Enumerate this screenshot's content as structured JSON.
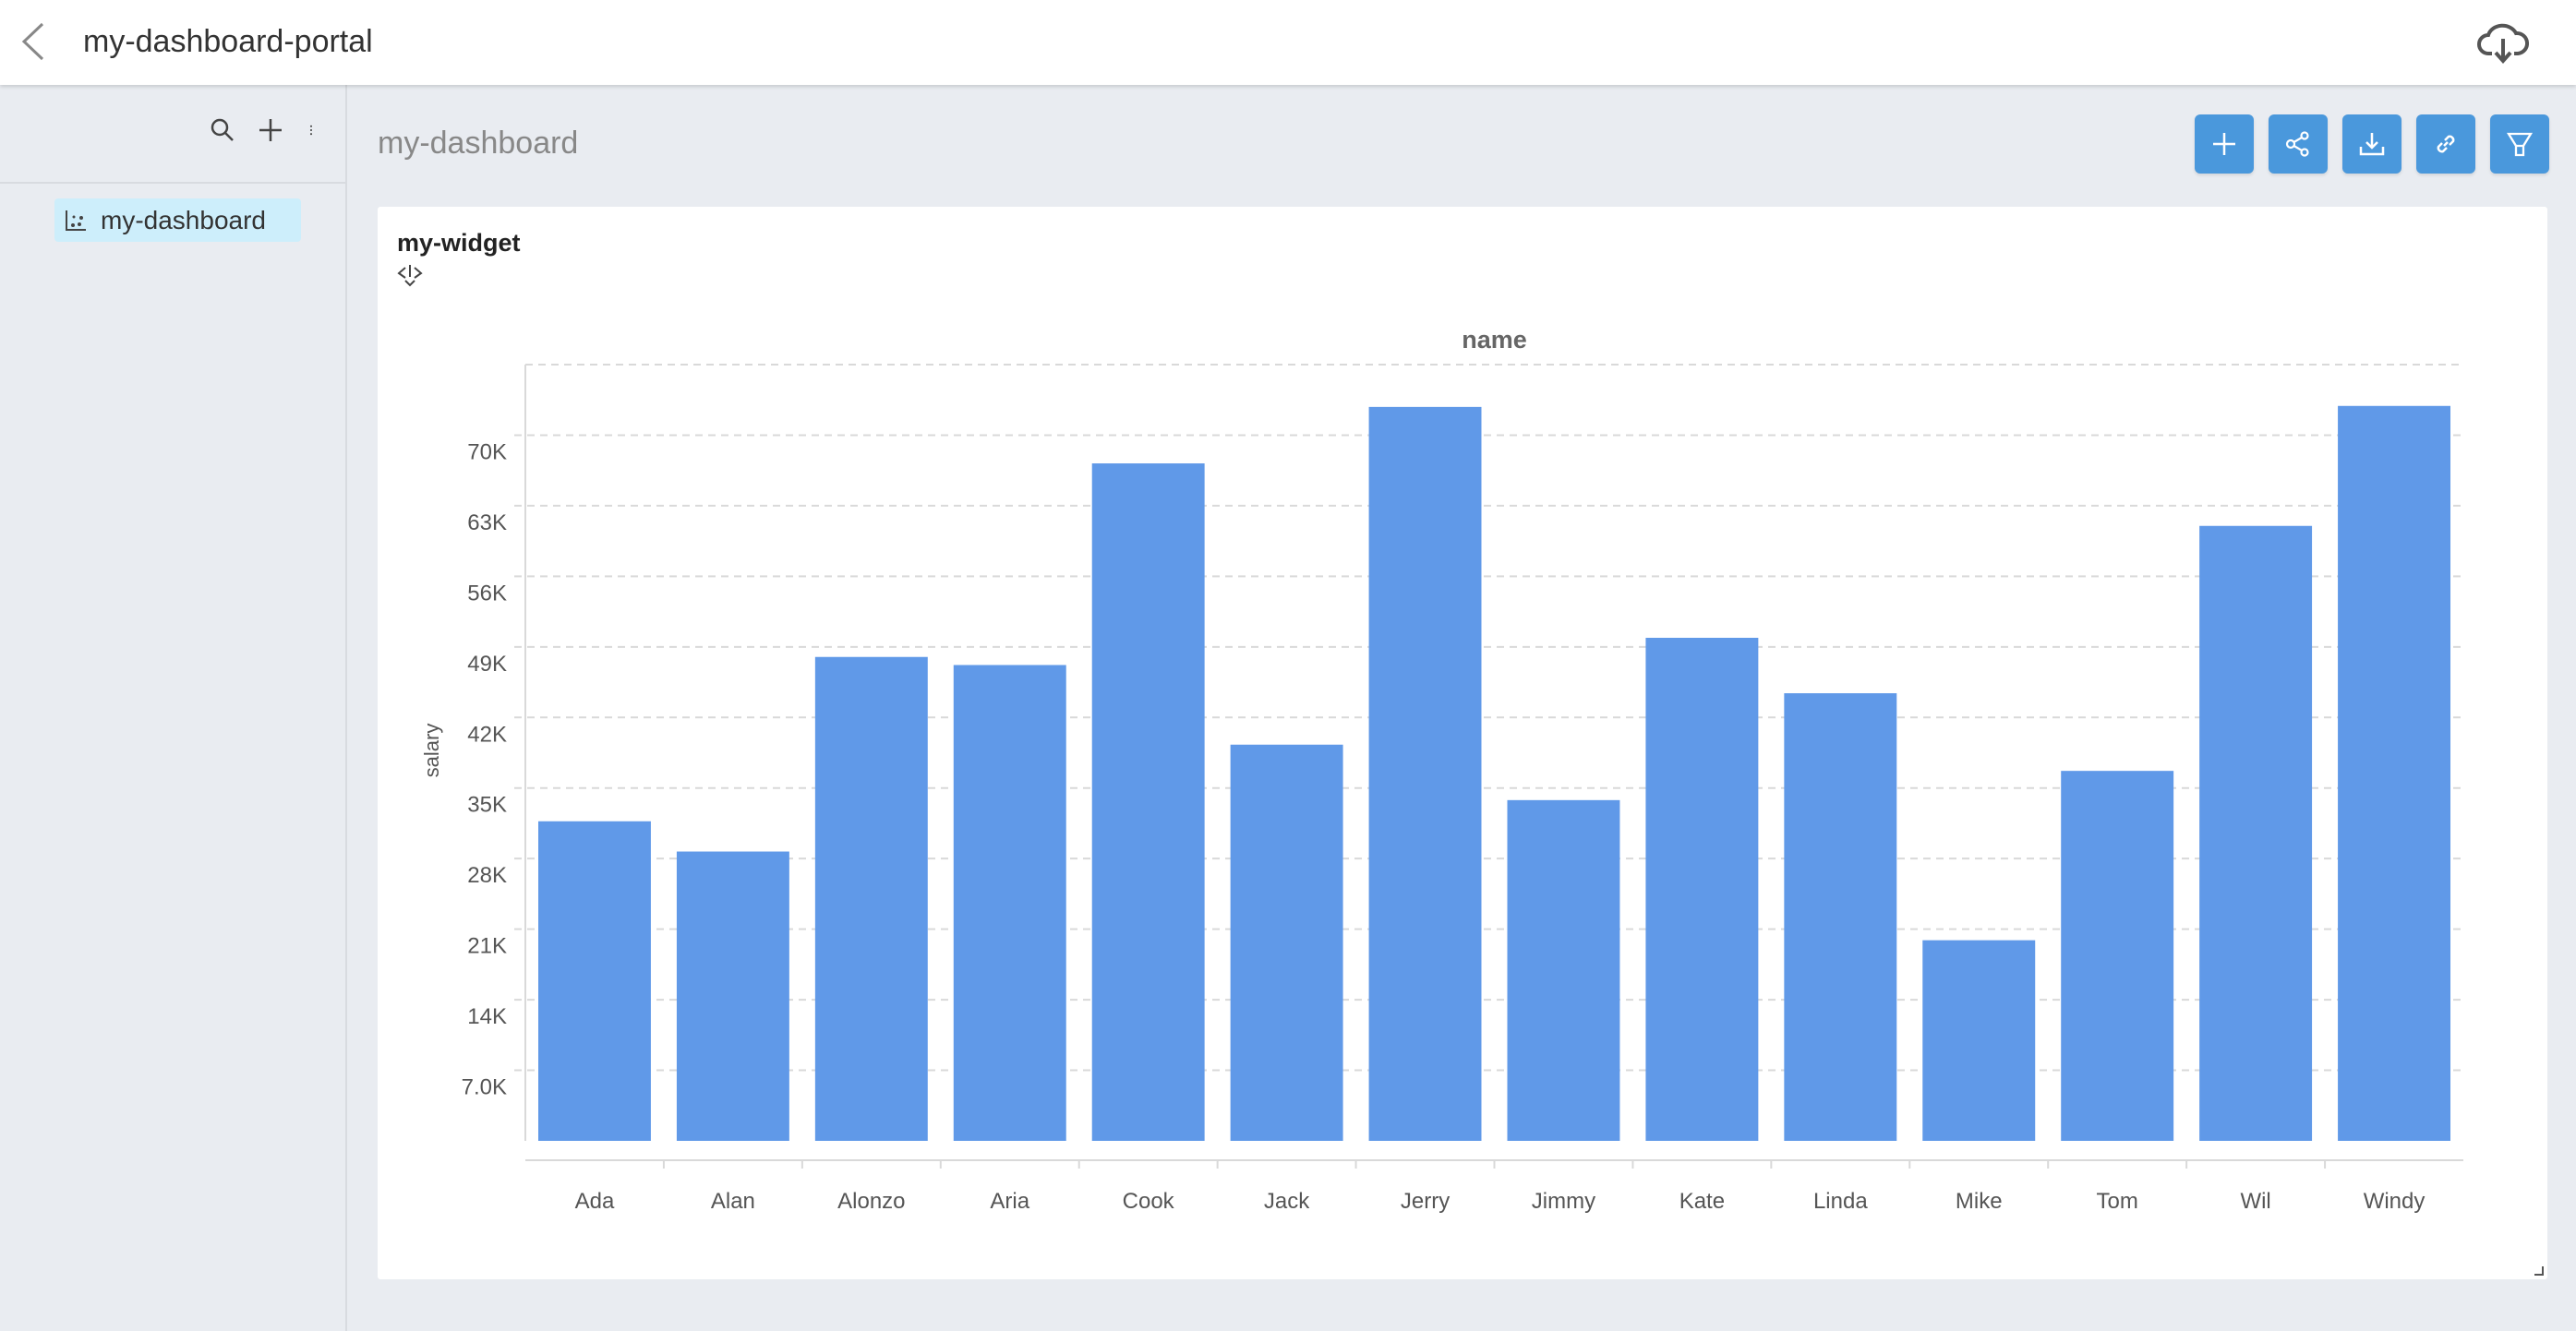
{
  "header": {
    "title": "my-dashboard-portal",
    "back_icon": "chevron-left-icon",
    "download_icon": "cloud-download-icon"
  },
  "sidebar": {
    "tools": [
      "search-icon",
      "plus-icon",
      "more-vertical-icon"
    ],
    "items": [
      {
        "label": "my-dashboard",
        "icon": "scatter-chart-icon",
        "selected": true
      }
    ]
  },
  "dashboard": {
    "title": "my-dashboard",
    "actions": [
      "add",
      "share",
      "download",
      "link",
      "filter"
    ],
    "accent": "#4a98dc"
  },
  "widget": {
    "title": "my-widget"
  },
  "chart_data": {
    "type": "bar",
    "title": "name",
    "xlabel": "",
    "ylabel": "salary",
    "categories": [
      "Ada",
      "Alan",
      "Alonzo",
      "Aria",
      "Cook",
      "Jack",
      "Jerry",
      "Jimmy",
      "Kate",
      "Linda",
      "Mike",
      "Tom",
      "Wil",
      "Windy"
    ],
    "values": [
      31700,
      28700,
      48000,
      47200,
      67200,
      39300,
      72800,
      33800,
      49900,
      44400,
      19900,
      36700,
      61000,
      72900
    ],
    "yticks": [
      "7.0K",
      "14K",
      "21K",
      "28K",
      "35K",
      "42K",
      "49K",
      "56K",
      "63K",
      "70K"
    ],
    "ylim": [
      0,
      77000
    ],
    "grid": true,
    "bar_color": "#6099e8"
  }
}
